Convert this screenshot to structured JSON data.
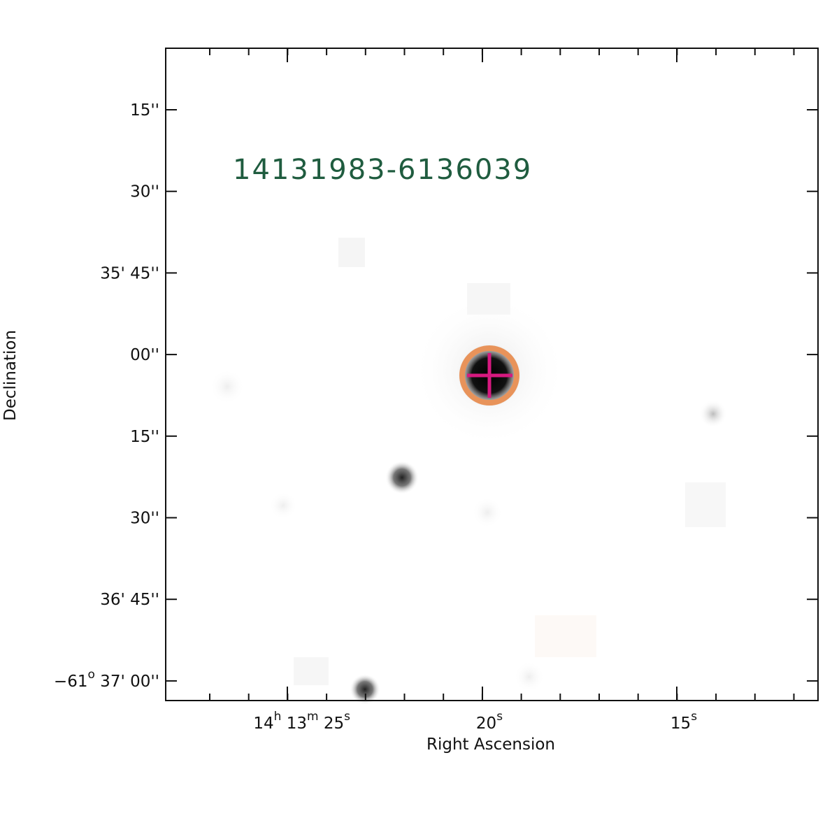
{
  "source_label": "14131983-6136039",
  "x_axis": {
    "title": "Right Ascension",
    "ticks": [
      [
        "14",
        "h",
        " 13",
        "m",
        " 25",
        "s"
      ],
      [
        "20",
        "s"
      ],
      [
        "15",
        "s"
      ]
    ]
  },
  "y_axis": {
    "title": "Declination",
    "ticks": [
      [
        "15''"
      ],
      [
        "30''"
      ],
      [
        "35' 45''"
      ],
      [
        "00''"
      ],
      [
        "15''"
      ],
      [
        "30''"
      ],
      [
        "36' 45''"
      ],
      [
        "−61",
        "o",
        " 37' 00''"
      ]
    ]
  }
}
